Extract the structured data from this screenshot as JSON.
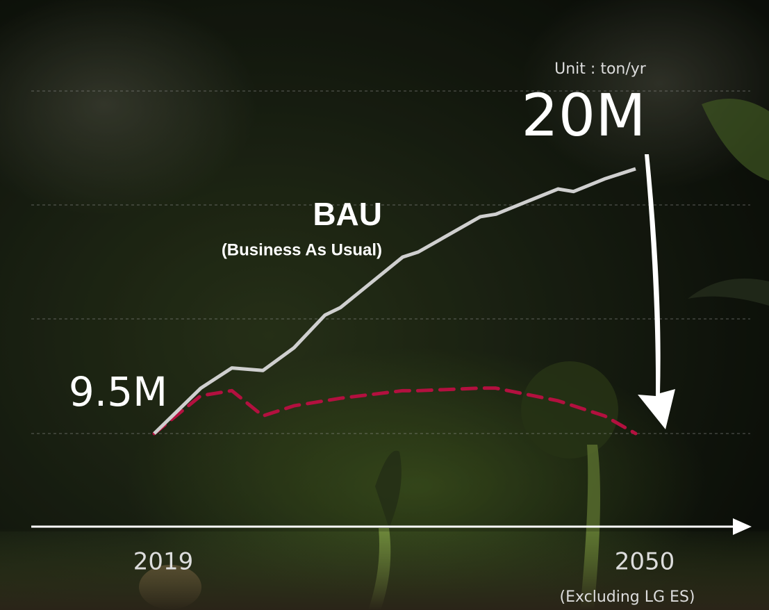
{
  "chart_data": {
    "type": "line",
    "annotations": {
      "unit": "Unit : ton/yr",
      "bau": "BAU",
      "bau_full": "(Business As Usual)",
      "note": "(Excluding LG ES)"
    },
    "x": [
      2019,
      2022,
      2024,
      2026,
      2028,
      2030,
      2031,
      2035,
      2036,
      2040,
      2041,
      2045,
      2046,
      2048,
      2050
    ],
    "xlim": [
      2019,
      2050
    ],
    "xticks": [
      2019,
      2050
    ],
    "ylim": [
      9.5,
      20
    ],
    "series": [
      {
        "color": "#cfcfcf",
        "style": "solid",
        "values": [
          9.5,
          11.3,
          12.1,
          12.0,
          12.9,
          14.2,
          14.5,
          16.5,
          16.7,
          18.1,
          18.2,
          19.2,
          19.1,
          19.6,
          20
        ],
        "value_labels": [
          "9.5M",
          null,
          null,
          null,
          null,
          null,
          null,
          null,
          null,
          null,
          null,
          null,
          null,
          null,
          "20M"
        ]
      },
      {
        "color": "#b3103f",
        "style": "dashed",
        "values": [
          9.5,
          11.0,
          11.2,
          10.2,
          10.6,
          10.8,
          10.9,
          11.2,
          11.2,
          11.3,
          11.3,
          10.8,
          10.6,
          10.2,
          9.5
        ]
      }
    ]
  }
}
